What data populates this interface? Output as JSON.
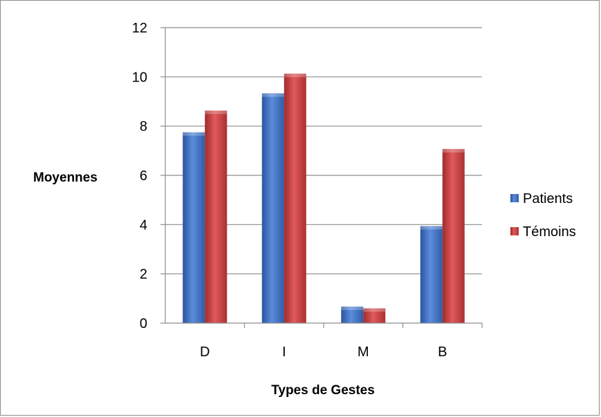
{
  "chart_data": {
    "type": "bar",
    "title": "",
    "xlabel": "Types de Gestes",
    "ylabel": "Moyennes",
    "categories": [
      "D",
      "I",
      "M",
      "B"
    ],
    "series": [
      {
        "name": "Patients",
        "values": [
          7.75,
          9.33,
          0.67,
          3.94
        ],
        "color": "#3d6fbf"
      },
      {
        "name": "Témoins",
        "values": [
          8.63,
          10.13,
          0.6,
          7.07
        ],
        "color": "#c0393b"
      }
    ],
    "ylim": [
      0,
      12
    ],
    "yticks": [
      "0",
      "2",
      "4",
      "6",
      "8",
      "10",
      "12"
    ],
    "grid": true,
    "legend_position": "right"
  }
}
